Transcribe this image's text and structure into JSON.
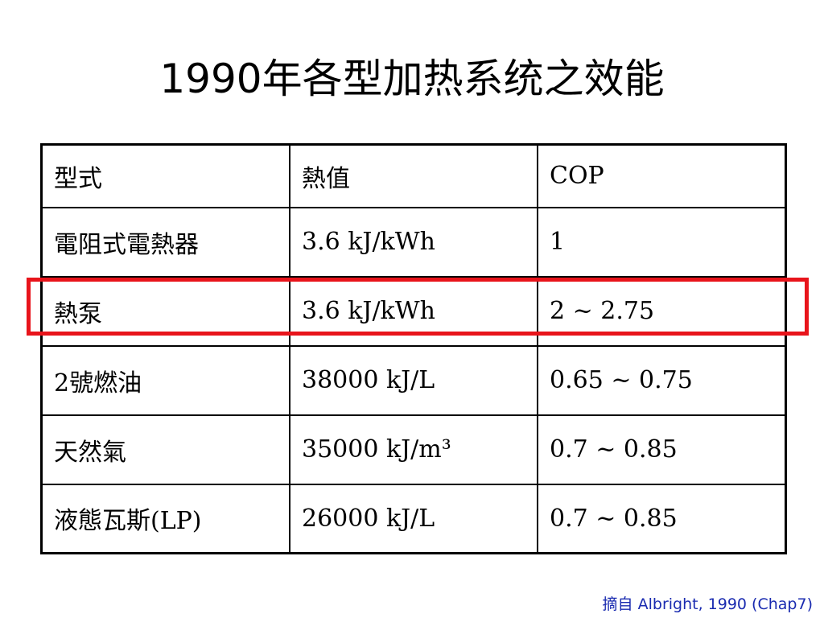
{
  "header": {
    "title": "1990年各型加热系统之效能"
  },
  "table": {
    "columns": [
      "型式",
      "熱值",
      "COP"
    ],
    "rows": [
      [
        "電阻式電熱器",
        "3.6 kJ/kWh",
        "1"
      ],
      [
        "熱泵",
        "3.6 kJ/kWh",
        "2 ~ 2.75"
      ],
      [
        "2號燃油",
        "38000 kJ/L",
        "0.65 ~ 0.75"
      ],
      [
        "天然氣",
        "35000 kJ/m³",
        "0.7 ~ 0.85"
      ],
      [
        "液態瓦斯(LP)",
        "26000 kJ/L",
        "0.7 ~ 0.85"
      ]
    ]
  },
  "footer": {
    "source_label": "摘自",
    "source": "Albright, 1990 (Chap7)"
  }
}
